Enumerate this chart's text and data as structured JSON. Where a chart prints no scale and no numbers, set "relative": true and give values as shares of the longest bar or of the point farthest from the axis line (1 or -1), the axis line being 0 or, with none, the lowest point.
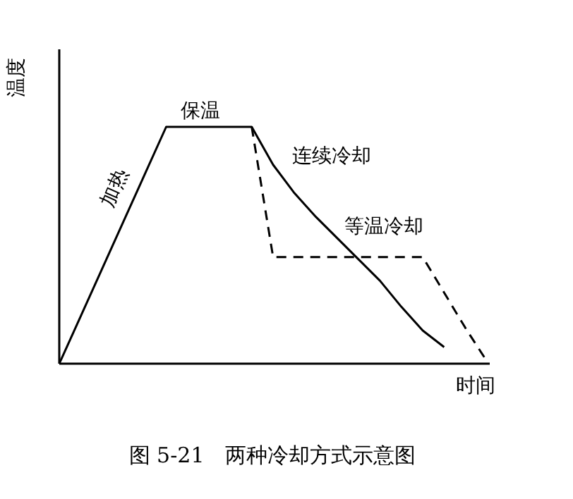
{
  "chart_data": {
    "type": "line",
    "relative": true,
    "xlabel": "时间",
    "ylabel": "温度",
    "categories": [
      null,
      null,
      null,
      null,
      null,
      null,
      null,
      null,
      null,
      null,
      null,
      null,
      null,
      null,
      null,
      null,
      null,
      null,
      null,
      null,
      null
    ],
    "series": [
      {
        "color": "#000000",
        "line_style": "solid",
        "values": [
          0,
          0.2,
          0.4,
          0.6,
          0.8,
          1,
          1,
          1,
          1,
          1,
          0.84,
          0.72,
          0.62,
          0.53,
          0.44,
          0.35,
          0.24,
          0.14,
          0.07,
          null,
          null
        ]
      },
      {
        "color": "#000000",
        "line_style": "dashed",
        "values": [
          null,
          null,
          null,
          null,
          null,
          null,
          null,
          null,
          null,
          1,
          0.45,
          0.45,
          0.45,
          0.45,
          0.45,
          0.45,
          0.45,
          0.45,
          0.3,
          0.15,
          0.01
        ]
      }
    ],
    "annotations": [
      "加热",
      "保温",
      "连续冷却",
      "等温冷却",
      "图 5-21　两种冷却方式示意图"
    ]
  }
}
